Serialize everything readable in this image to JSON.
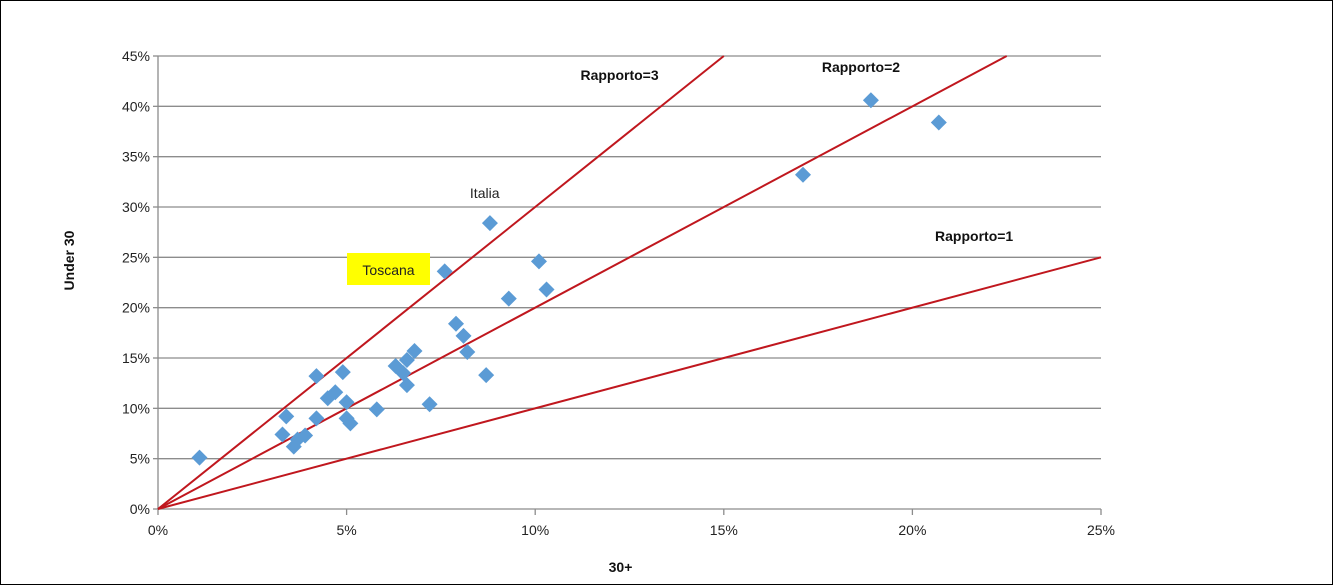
{
  "chart_data": {
    "type": "scatter",
    "xlabel": "30+",
    "ylabel": "Under 30",
    "xlim": [
      0,
      25
    ],
    "ylim": [
      0,
      45
    ],
    "x_ticks": [
      "0%",
      "5%",
      "10%",
      "15%",
      "20%",
      "25%"
    ],
    "y_ticks": [
      "0%",
      "5%",
      "10%",
      "15%",
      "20%",
      "25%",
      "30%",
      "35%",
      "40%",
      "45%"
    ],
    "grid": "horizontal",
    "marker_color": "#5b9bd5",
    "line_color": "#c0171e",
    "points": [
      {
        "x": 1.1,
        "y": 5.1
      },
      {
        "x": 3.3,
        "y": 7.4
      },
      {
        "x": 3.4,
        "y": 9.2
      },
      {
        "x": 3.6,
        "y": 6.2
      },
      {
        "x": 3.7,
        "y": 6.9
      },
      {
        "x": 3.9,
        "y": 7.3
      },
      {
        "x": 4.2,
        "y": 9.0
      },
      {
        "x": 4.2,
        "y": 13.2
      },
      {
        "x": 4.5,
        "y": 11.0
      },
      {
        "x": 4.7,
        "y": 11.6
      },
      {
        "x": 4.9,
        "y": 13.6
      },
      {
        "x": 5.0,
        "y": 10.6
      },
      {
        "x": 5.0,
        "y": 9.0
      },
      {
        "x": 5.1,
        "y": 8.5
      },
      {
        "x": 5.8,
        "y": 9.9
      },
      {
        "x": 6.3,
        "y": 14.2
      },
      {
        "x": 6.5,
        "y": 13.5
      },
      {
        "x": 6.6,
        "y": 14.8
      },
      {
        "x": 6.6,
        "y": 12.3
      },
      {
        "x": 6.8,
        "y": 15.7
      },
      {
        "x": 7.2,
        "y": 10.4
      },
      {
        "x": 7.6,
        "y": 23.6
      },
      {
        "x": 7.9,
        "y": 18.4
      },
      {
        "x": 8.1,
        "y": 17.2
      },
      {
        "x": 8.2,
        "y": 15.6
      },
      {
        "x": 8.7,
        "y": 13.3
      },
      {
        "x": 8.8,
        "y": 28.4
      },
      {
        "x": 9.3,
        "y": 20.9
      },
      {
        "x": 10.1,
        "y": 24.6
      },
      {
        "x": 10.3,
        "y": 21.8
      },
      {
        "x": 17.1,
        "y": 33.2
      },
      {
        "x": 18.9,
        "y": 40.6
      },
      {
        "x": 20.7,
        "y": 38.4
      }
    ],
    "lines": [
      {
        "label": "Rapporto=3",
        "slope": 3
      },
      {
        "label": "Rapporto=2",
        "slope": 2
      },
      {
        "label": "Rapporto=1",
        "slope": 1
      }
    ],
    "annotations": [
      {
        "text": "Italia",
        "x": 8.8,
        "y": 28.4
      },
      {
        "text": "Toscana",
        "x": 7.6,
        "y": 23.6,
        "highlight": "#ffff00"
      }
    ]
  }
}
